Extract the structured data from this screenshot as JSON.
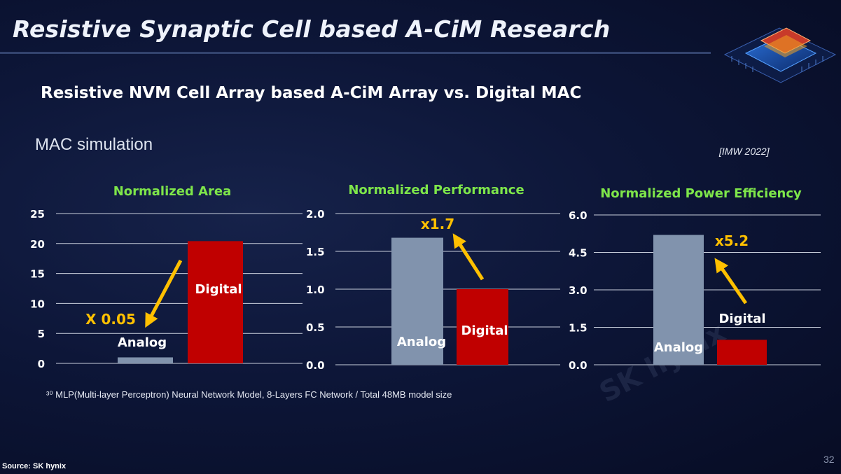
{
  "title": "Resistive Synaptic Cell based A-CiM Research",
  "subtitle": "Resistive NVM Cell Array based A-CiM Array vs. Digital MAC",
  "section": "MAC simulation",
  "reference": "[IMW 2022]",
  "footnote": "³⁰ MLP(Multi-layer Perceptron) Neural Network Model, 8-Layers FC Network / Total 48MB model size",
  "source": "Source: SK hynix",
  "page_number": "32",
  "watermark": "SK hynix",
  "colors": {
    "analog": "#8193ad",
    "digital": "#c00000",
    "chart_title": "#7ee64a",
    "annotation": "#ffc000"
  },
  "chart_data": [
    {
      "type": "bar",
      "title": "Normalized Area",
      "categories": [
        "Analog",
        "Digital"
      ],
      "values": [
        1.0,
        20.4
      ],
      "ylim": [
        0,
        25
      ],
      "yticks": [
        "0",
        "5",
        "10",
        "15",
        "20",
        "25"
      ],
      "grid": true,
      "annotation": "X 0.05"
    },
    {
      "type": "bar",
      "title": "Normalized Performance",
      "categories": [
        "Analog",
        "Digital"
      ],
      "values": [
        1.68,
        1.0
      ],
      "ylim": [
        0,
        2.0
      ],
      "yticks": [
        "0.0",
        "0.5",
        "1.0",
        "1.5",
        "2.0"
      ],
      "grid": true,
      "annotation": "x1.7"
    },
    {
      "type": "bar",
      "title": "Normalized Power Efficiency",
      "categories": [
        "Analog",
        "Digital"
      ],
      "values": [
        5.2,
        1.0
      ],
      "ylim": [
        0,
        6.0
      ],
      "yticks": [
        "0.0",
        "1.5",
        "3.0",
        "4.5",
        "6.0"
      ],
      "grid": true,
      "annotation": "x5.2"
    }
  ]
}
